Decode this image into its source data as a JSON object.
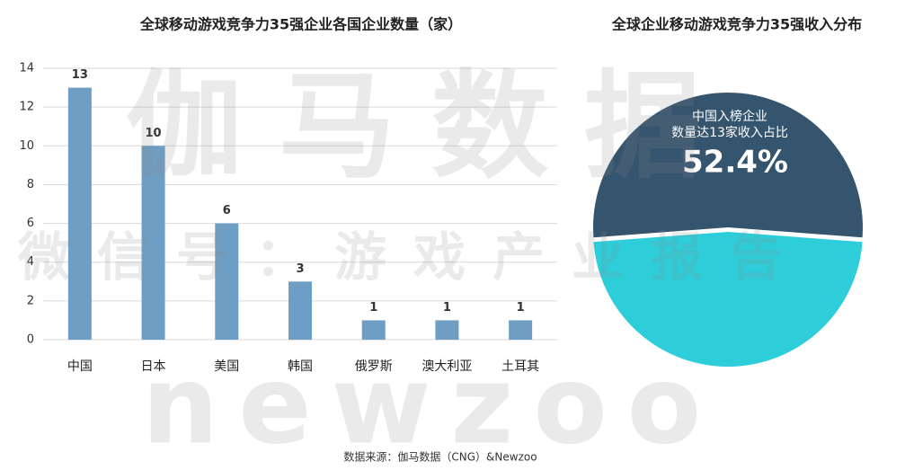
{
  "chart_data": [
    {
      "type": "bar",
      "title": "全球移动游戏竞争力35强企业各国企业数量（家）",
      "categories": [
        "中国",
        "日本",
        "美国",
        "韩国",
        "俄罗斯",
        "澳大利亚",
        "土耳其"
      ],
      "values": [
        13,
        10,
        6,
        3,
        1,
        1,
        1
      ],
      "color": "#6f9ec4",
      "ylim": [
        0,
        14
      ],
      "yticks": [
        0,
        2,
        4,
        6,
        8,
        10,
        12,
        14
      ],
      "grid": true
    },
    {
      "type": "pie",
      "title": "全球企业移动游戏竞争力35强收入分布",
      "categories": [
        "中国入榜企业",
        null
      ],
      "values": [
        52.4,
        47.6
      ],
      "value_labels": [
        "52.4%",
        null
      ],
      "colors": [
        "#35546e",
        "#2dcdd9"
      ],
      "annotation": [
        "中国入榜企业",
        "数量达13家收入占比"
      ]
    }
  ],
  "watermarks": [
    "伽马数据",
    "微信号：游戏产业报告",
    "newzoo"
  ],
  "source": "数据来源：伽马数据（CNG）&Newzoo"
}
